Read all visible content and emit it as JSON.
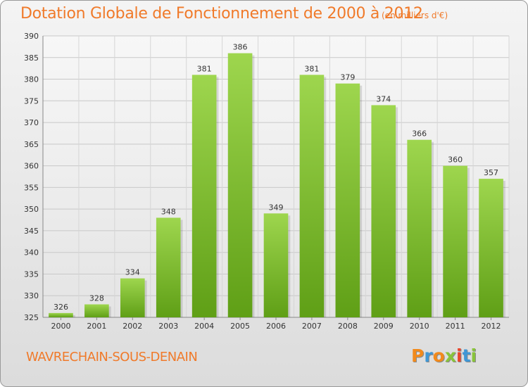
{
  "header": {
    "title": "Dotation Globale de Fonctionnement de 2000 à 2012",
    "unit": "(en milliers d'€)"
  },
  "footer": {
    "commune": "WAVRECHAIN-SOUS-DENAIN",
    "logo": [
      "P",
      "r",
      "o",
      "x",
      "i",
      "t",
      "i"
    ]
  },
  "colors": {
    "title": "#f07a2a",
    "bar_light": "#9ed64e",
    "bar_dark": "#5f9f16",
    "logo_letters": [
      "#f28a1c",
      "#3f97d6",
      "#f28a1c",
      "#89c43a",
      "#e8452c",
      "#3f97d6",
      "#89c43a"
    ]
  },
  "chart_data": {
    "type": "bar",
    "title": "Dotation Globale de Fonctionnement de 2000 à 2012",
    "unit": "(en milliers d'€)",
    "categories": [
      "2000",
      "2001",
      "2002",
      "2003",
      "2004",
      "2005",
      "2006",
      "2007",
      "2008",
      "2009",
      "2010",
      "2011",
      "2012"
    ],
    "values": [
      326,
      328,
      334,
      348,
      381,
      386,
      349,
      381,
      379,
      374,
      366,
      360,
      357
    ],
    "ylim": [
      325,
      390
    ],
    "yticks": [
      325,
      330,
      335,
      340,
      345,
      350,
      355,
      360,
      365,
      370,
      375,
      380,
      385,
      390
    ],
    "grid": true,
    "legend": "none"
  }
}
